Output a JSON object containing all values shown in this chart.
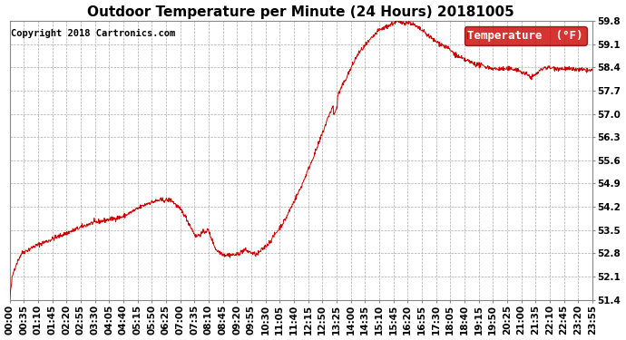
{
  "title": "Outdoor Temperature per Minute (24 Hours) 20181005",
  "copyright": "Copyright 2018 Cartronics.com",
  "legend_label": "Temperature  (°F)",
  "legend_bg": "#cc0000",
  "legend_fg": "#ffffff",
  "line_color": "#cc0000",
  "background_color": "#ffffff",
  "grid_color": "#aaaaaa",
  "ylim": [
    51.4,
    59.8
  ],
  "yticks": [
    51.4,
    52.1,
    52.8,
    53.5,
    54.2,
    54.9,
    55.6,
    56.3,
    57.0,
    57.7,
    58.4,
    59.1,
    59.8
  ],
  "xtick_labels": [
    "00:00",
    "00:35",
    "01:10",
    "01:45",
    "02:20",
    "02:55",
    "03:30",
    "04:05",
    "04:40",
    "05:15",
    "05:50",
    "06:25",
    "07:00",
    "07:35",
    "08:10",
    "08:45",
    "09:20",
    "09:55",
    "10:30",
    "11:05",
    "11:40",
    "12:15",
    "12:50",
    "13:25",
    "14:00",
    "14:35",
    "15:10",
    "15:45",
    "16:20",
    "16:55",
    "17:30",
    "18:05",
    "18:40",
    "19:15",
    "19:50",
    "20:25",
    "21:00",
    "21:35",
    "22:10",
    "22:45",
    "23:20",
    "23:55"
  ],
  "title_fontsize": 11,
  "tick_fontsize": 7.5,
  "copyright_fontsize": 7.5,
  "legend_fontsize": 9
}
